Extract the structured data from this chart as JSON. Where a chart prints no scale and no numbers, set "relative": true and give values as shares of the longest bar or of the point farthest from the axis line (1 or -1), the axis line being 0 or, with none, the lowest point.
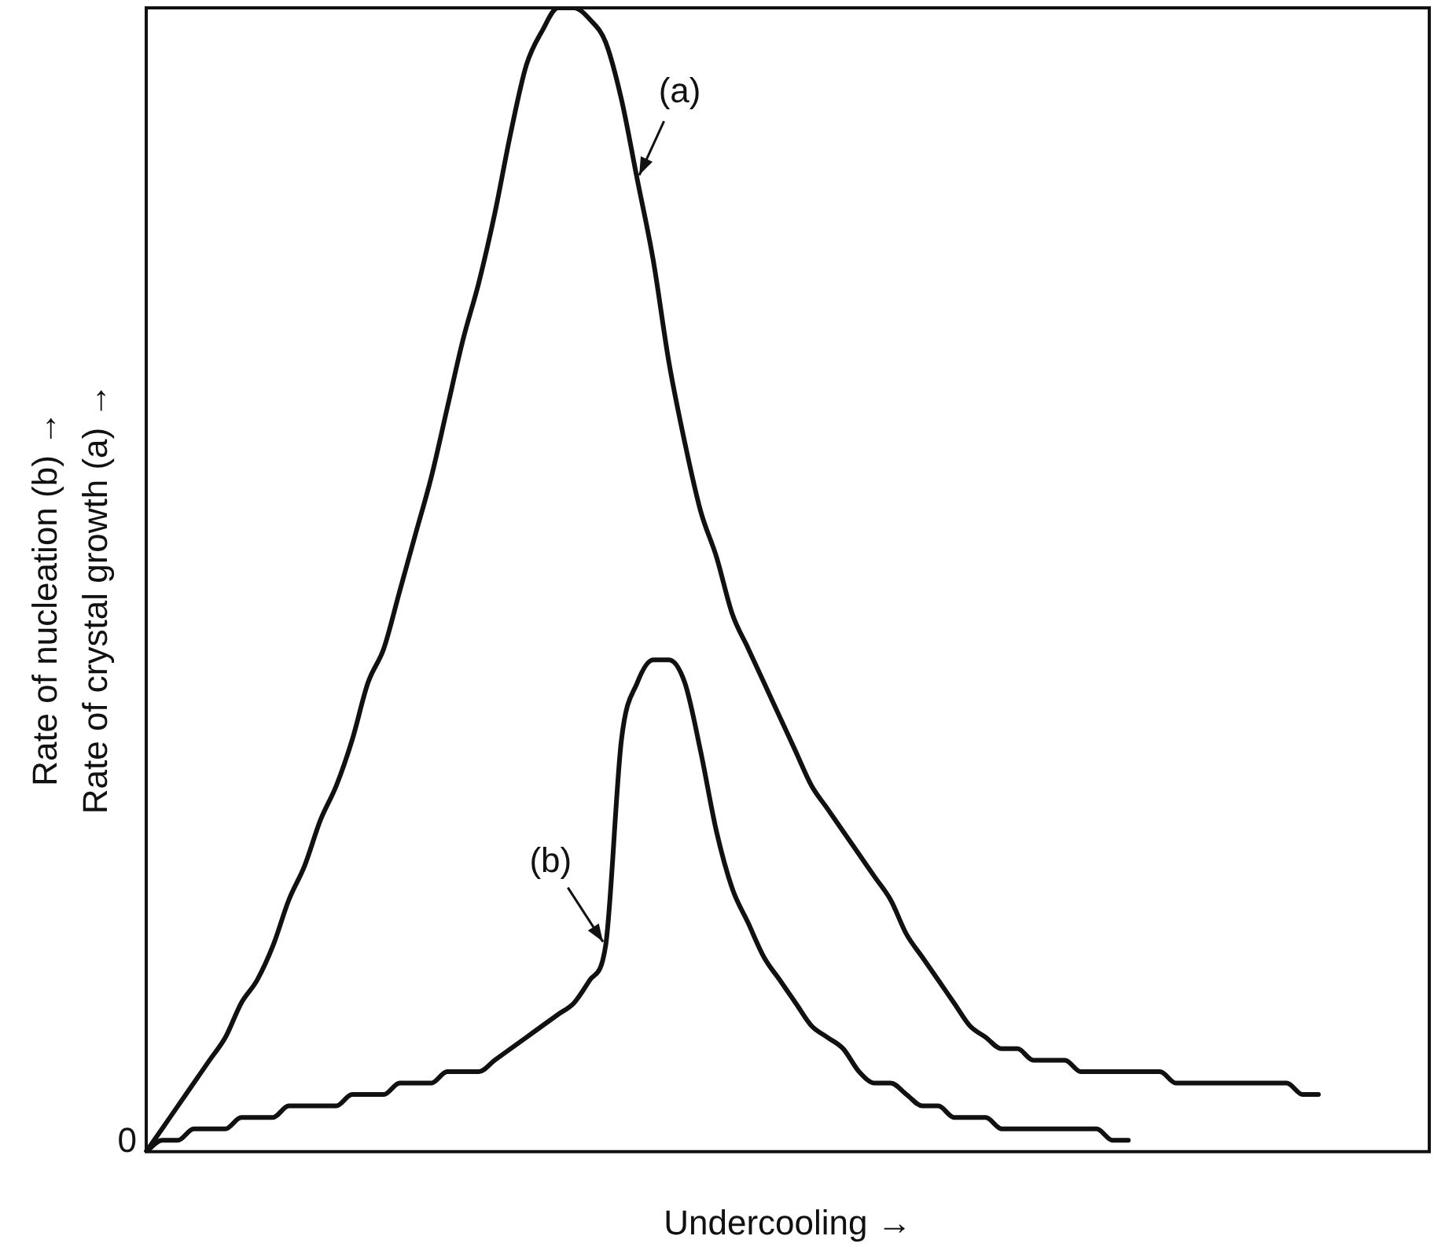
{
  "chart_data": {
    "type": "line",
    "relative": true,
    "xlabel": "Undercooling →",
    "ylabel": "Rate of nucleation (b) →\nRate of crystal growth (a) →",
    "annotations": [
      "0"
    ],
    "grid": false,
    "legend": false,
    "marker": "none",
    "line_style": "solid",
    "categories": [
      null,
      null,
      null,
      null,
      null,
      null,
      null,
      null,
      null,
      null,
      null,
      null,
      null,
      null,
      null,
      null,
      null,
      null,
      null,
      null,
      null,
      null,
      null,
      null,
      null,
      null,
      null,
      null,
      null,
      null,
      null,
      null,
      null,
      null,
      null,
      null,
      null,
      null,
      null,
      null,
      null,
      null,
      null,
      null,
      null,
      null,
      null,
      null,
      null,
      null,
      null,
      null,
      null,
      null,
      null,
      null,
      null,
      null,
      null,
      null,
      null,
      null,
      null,
      null,
      null,
      null,
      null,
      null,
      null,
      null,
      null,
      null,
      null,
      null,
      null,
      null,
      null,
      null,
      null,
      null,
      null,
      null
    ],
    "series": [
      {
        "name": "(a)",
        "color": "#111111",
        "values": [
          0,
          0.02,
          0.04,
          0.06,
          0.08,
          0.1,
          0.13,
          0.15,
          0.18,
          0.22,
          0.25,
          0.29,
          0.32,
          0.36,
          0.41,
          0.44,
          0.49,
          0.54,
          0.59,
          0.65,
          0.71,
          0.76,
          0.82,
          0.89,
          0.95,
          0.98,
          1.0,
          1.0,
          0.99,
          0.97,
          0.92,
          0.85,
          0.78,
          0.69,
          0.62,
          0.56,
          0.52,
          0.47,
          0.44,
          0.41,
          0.38,
          0.35,
          0.32,
          0.3,
          0.28,
          0.26,
          0.24,
          0.22,
          0.19,
          0.17,
          0.15,
          0.13,
          0.11,
          0.1,
          0.09,
          0.09,
          0.08,
          0.08,
          0.08,
          0.07,
          0.07,
          0.07,
          0.07,
          0.07,
          0.07,
          0.06,
          0.06,
          0.06,
          0.06,
          0.06,
          0.06,
          0.06,
          0.06,
          0.05,
          0.05,
          null,
          null,
          null,
          null,
          null,
          null,
          null
        ]
      },
      {
        "name": "(b)",
        "color": "#111111",
        "values": [
          0,
          0.01,
          0.01,
          0.02,
          0.02,
          0.02,
          0.03,
          0.03,
          0.03,
          0.04,
          0.04,
          0.04,
          0.04,
          0.05,
          0.05,
          0.05,
          0.06,
          0.06,
          0.06,
          0.07,
          0.07,
          0.07,
          0.08,
          0.09,
          0.1,
          0.11,
          0.12,
          0.13,
          0.15,
          0.18,
          0.36,
          0.41,
          0.43,
          0.43,
          0.41,
          0.35,
          0.28,
          0.23,
          0.2,
          0.17,
          0.15,
          0.13,
          0.11,
          0.1,
          0.09,
          0.07,
          0.06,
          0.06,
          0.05,
          0.04,
          0.04,
          0.03,
          0.03,
          0.03,
          0.02,
          0.02,
          0.02,
          0.02,
          0.02,
          0.02,
          0.02,
          0.01,
          0.01,
          null,
          null,
          null,
          null,
          null,
          null,
          null,
          null,
          null,
          null,
          null,
          null,
          null,
          null,
          null,
          null,
          null,
          null,
          null
        ]
      }
    ]
  }
}
